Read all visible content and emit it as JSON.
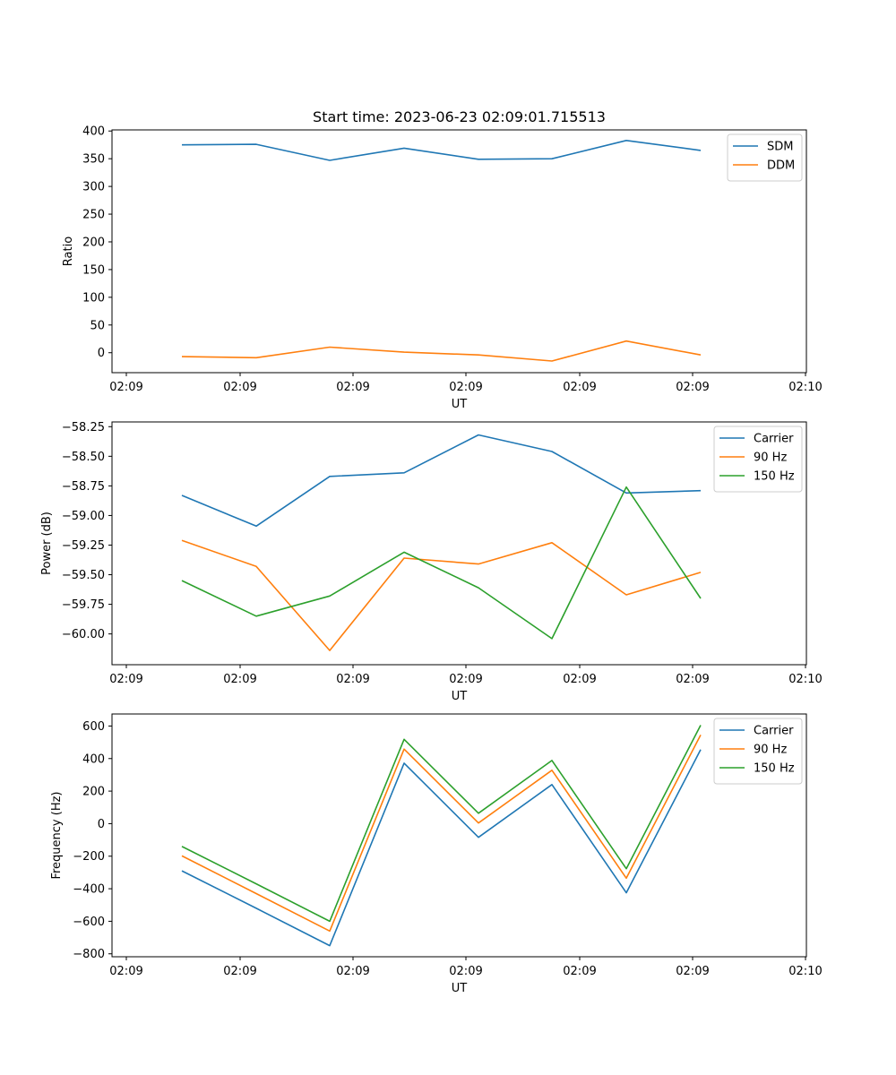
{
  "chart_data": [
    {
      "type": "line",
      "title": "Start time: 2023-06-23 02:09:01.715513",
      "xlabel": "UT",
      "ylabel": "Ratio",
      "x_tick_labels": [
        "02:09",
        "02:09",
        "02:09",
        "02:09",
        "02:09",
        "02:09",
        "02:10"
      ],
      "ylim": [
        -36,
        402
      ],
      "yticks": [
        0,
        50,
        100,
        150,
        200,
        250,
        300,
        350,
        400
      ],
      "ytick_labels": [
        "0",
        "50",
        "100",
        "150",
        "200",
        "250",
        "300",
        "350",
        "400"
      ],
      "grid": false,
      "legend": "upper-right",
      "series": [
        {
          "name": "SDM",
          "color": "#1f77b4",
          "values": [
            375,
            376,
            347,
            369,
            349,
            350,
            383,
            365
          ]
        },
        {
          "name": "DDM",
          "color": "#ff7f0e",
          "values": [
            -7,
            -9,
            10,
            1,
            -4,
            -15,
            21,
            -4
          ]
        }
      ]
    },
    {
      "type": "line",
      "title": "",
      "xlabel": "UT",
      "ylabel": "Power (dB)",
      "x_tick_labels": [
        "02:09",
        "02:09",
        "02:09",
        "02:09",
        "02:09",
        "02:09",
        "02:10"
      ],
      "ylim": [
        -60.26,
        -58.21
      ],
      "yticks": [
        -60.0,
        -59.75,
        -59.5,
        -59.25,
        -59.0,
        -58.75,
        -58.5,
        -58.25
      ],
      "ytick_labels": [
        "−60.00",
        "−59.75",
        "−59.50",
        "−59.25",
        "−59.00",
        "−58.75",
        "−58.50",
        "−58.25"
      ],
      "grid": false,
      "legend": "upper-right",
      "series": [
        {
          "name": "Carrier",
          "color": "#1f77b4",
          "values": [
            -58.83,
            -59.09,
            -58.67,
            -58.64,
            -58.32,
            -58.46,
            -58.81,
            -58.79
          ]
        },
        {
          "name": "90 Hz",
          "color": "#ff7f0e",
          "values": [
            -59.21,
            -59.43,
            -60.14,
            -59.36,
            -59.41,
            -59.23,
            -59.67,
            -59.48
          ]
        },
        {
          "name": "150 Hz",
          "color": "#2ca02c",
          "values": [
            -59.55,
            -59.85,
            -59.68,
            -59.31,
            -59.61,
            -60.04,
            -58.76,
            -59.7
          ]
        }
      ]
    },
    {
      "type": "line",
      "title": "",
      "xlabel": "UT",
      "ylabel": "Frequency (Hz)",
      "x_tick_labels": [
        "02:09",
        "02:09",
        "02:09",
        "02:09",
        "02:09",
        "02:09",
        "02:10"
      ],
      "ylim": [
        -818,
        674
      ],
      "yticks": [
        -800,
        -600,
        -400,
        -200,
        0,
        200,
        400,
        600
      ],
      "ytick_labels": [
        "−800",
        "−600",
        "−400",
        "−200",
        "0",
        "200",
        "400",
        "600"
      ],
      "grid": false,
      "legend": "upper-right",
      "series": [
        {
          "name": "Carrier",
          "color": "#1f77b4",
          "values": [
            -290,
            -520,
            -750,
            372,
            -84,
            240,
            -425,
            455
          ]
        },
        {
          "name": "90 Hz",
          "color": "#ff7f0e",
          "values": [
            -198,
            -430,
            -660,
            458,
            4,
            328,
            -335,
            545
          ]
        },
        {
          "name": "150 Hz",
          "color": "#2ca02c",
          "values": [
            -140,
            -370,
            -600,
            518,
            64,
            388,
            -277,
            605
          ]
        }
      ]
    }
  ]
}
